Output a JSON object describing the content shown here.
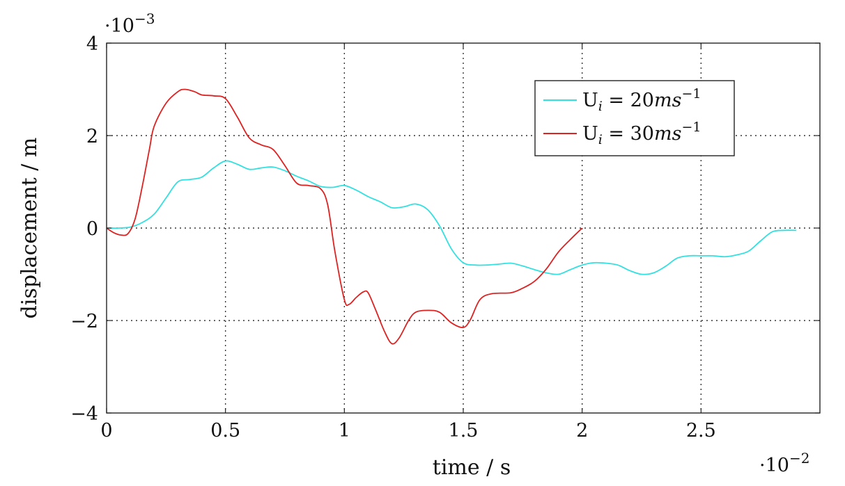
{
  "chart_data": {
    "type": "line",
    "xlabel": "time / s",
    "ylabel": "displacement / m",
    "x_multiplier": "·10−2",
    "x_exponent_base": "·10",
    "x_exponent": "−2",
    "y_multiplier": "·10−3",
    "y_exponent_base": "·10",
    "y_exponent": "−3",
    "xlim": [
      0,
      3.0
    ],
    "ylim": [
      -4,
      4
    ],
    "x_ticks": [
      0,
      0.5,
      1,
      1.5,
      2,
      2.5
    ],
    "x_tick_labels": [
      "0",
      "0.5",
      "1",
      "1.5",
      "2",
      "2.5"
    ],
    "y_ticks": [
      -4,
      -2,
      0,
      2,
      4
    ],
    "y_tick_labels": [
      "−4",
      "−2",
      "0",
      "2",
      "4"
    ],
    "grid": true,
    "legend_position": "top-right",
    "series": [
      {
        "name": "U_i = 20ms^-1",
        "legend_main": "U",
        "legend_sub": "i",
        "legend_eq": " = 20",
        "legend_unit": "ms",
        "legend_sup": "−1",
        "color": "#33e0e0",
        "points": [
          [
            0,
            0
          ],
          [
            0.05,
            0
          ],
          [
            0.1,
            0.02
          ],
          [
            0.15,
            0.12
          ],
          [
            0.2,
            0.3
          ],
          [
            0.25,
            0.65
          ],
          [
            0.3,
            1.0
          ],
          [
            0.35,
            1.05
          ],
          [
            0.4,
            1.1
          ],
          [
            0.45,
            1.3
          ],
          [
            0.5,
            1.45
          ],
          [
            0.55,
            1.38
          ],
          [
            0.6,
            1.27
          ],
          [
            0.65,
            1.3
          ],
          [
            0.7,
            1.32
          ],
          [
            0.75,
            1.24
          ],
          [
            0.8,
            1.12
          ],
          [
            0.85,
            1.02
          ],
          [
            0.9,
            0.9
          ],
          [
            0.95,
            0.88
          ],
          [
            1.0,
            0.92
          ],
          [
            1.05,
            0.82
          ],
          [
            1.1,
            0.68
          ],
          [
            1.15,
            0.57
          ],
          [
            1.2,
            0.44
          ],
          [
            1.25,
            0.46
          ],
          [
            1.3,
            0.52
          ],
          [
            1.35,
            0.4
          ],
          [
            1.4,
            0.05
          ],
          [
            1.45,
            -0.45
          ],
          [
            1.5,
            -0.75
          ],
          [
            1.55,
            -0.8
          ],
          [
            1.6,
            -0.8
          ],
          [
            1.65,
            -0.78
          ],
          [
            1.7,
            -0.76
          ],
          [
            1.75,
            -0.82
          ],
          [
            1.8,
            -0.9
          ],
          [
            1.85,
            -0.97
          ],
          [
            1.9,
            -1.0
          ],
          [
            1.95,
            -0.9
          ],
          [
            2.0,
            -0.8
          ],
          [
            2.05,
            -0.75
          ],
          [
            2.1,
            -0.76
          ],
          [
            2.15,
            -0.8
          ],
          [
            2.2,
            -0.92
          ],
          [
            2.25,
            -1.0
          ],
          [
            2.3,
            -0.97
          ],
          [
            2.35,
            -0.83
          ],
          [
            2.4,
            -0.65
          ],
          [
            2.45,
            -0.6
          ],
          [
            2.5,
            -0.6
          ],
          [
            2.55,
            -0.6
          ],
          [
            2.6,
            -0.62
          ],
          [
            2.65,
            -0.58
          ],
          [
            2.7,
            -0.5
          ],
          [
            2.75,
            -0.28
          ],
          [
            2.8,
            -0.08
          ],
          [
            2.85,
            -0.05
          ],
          [
            2.9,
            -0.05
          ]
        ]
      },
      {
        "name": "U_i = 30ms^-1",
        "legend_main": "U",
        "legend_sub": "i",
        "legend_eq": " = 30",
        "legend_unit": "ms",
        "legend_sup": "−1",
        "color": "#dd2222",
        "points": [
          [
            0,
            0
          ],
          [
            0.03,
            -0.1
          ],
          [
            0.06,
            -0.15
          ],
          [
            0.09,
            -0.12
          ],
          [
            0.12,
            0.2
          ],
          [
            0.15,
            0.9
          ],
          [
            0.18,
            1.7
          ],
          [
            0.2,
            2.2
          ],
          [
            0.25,
            2.7
          ],
          [
            0.3,
            2.95
          ],
          [
            0.33,
            3.0
          ],
          [
            0.37,
            2.95
          ],
          [
            0.4,
            2.88
          ],
          [
            0.45,
            2.86
          ],
          [
            0.5,
            2.8
          ],
          [
            0.55,
            2.4
          ],
          [
            0.6,
            1.95
          ],
          [
            0.65,
            1.8
          ],
          [
            0.7,
            1.7
          ],
          [
            0.75,
            1.35
          ],
          [
            0.8,
            0.97
          ],
          [
            0.85,
            0.92
          ],
          [
            0.9,
            0.85
          ],
          [
            0.93,
            0.5
          ],
          [
            0.96,
            -0.5
          ],
          [
            1.0,
            -1.55
          ],
          [
            1.02,
            -1.65
          ],
          [
            1.05,
            -1.5
          ],
          [
            1.08,
            -1.38
          ],
          [
            1.1,
            -1.4
          ],
          [
            1.13,
            -1.75
          ],
          [
            1.17,
            -2.25
          ],
          [
            1.2,
            -2.5
          ],
          [
            1.23,
            -2.38
          ],
          [
            1.27,
            -2.0
          ],
          [
            1.3,
            -1.82
          ],
          [
            1.35,
            -1.78
          ],
          [
            1.4,
            -1.82
          ],
          [
            1.45,
            -2.05
          ],
          [
            1.5,
            -2.15
          ],
          [
            1.53,
            -1.98
          ],
          [
            1.57,
            -1.55
          ],
          [
            1.62,
            -1.42
          ],
          [
            1.7,
            -1.4
          ],
          [
            1.75,
            -1.3
          ],
          [
            1.8,
            -1.15
          ],
          [
            1.85,
            -0.88
          ],
          [
            1.9,
            -0.52
          ],
          [
            1.95,
            -0.25
          ],
          [
            2.0,
            0.0
          ]
        ]
      }
    ]
  }
}
